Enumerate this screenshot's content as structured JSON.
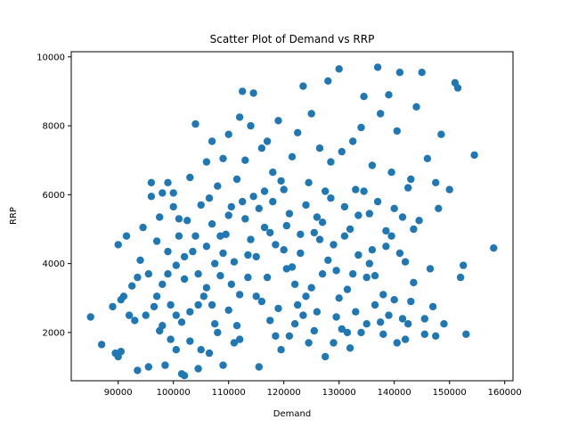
{
  "chart_data": {
    "type": "scatter",
    "title": "Scatter Plot of Demand vs RRP",
    "xlabel": "Demand",
    "ylabel": "RRP",
    "xlim": [
      81500,
      161500
    ],
    "ylim": [
      600,
      10150
    ],
    "xticks": [
      90000,
      100000,
      110000,
      120000,
      130000,
      140000,
      150000,
      160000
    ],
    "xtick_labels": [
      "90000",
      "100000",
      "110000",
      "120000",
      "130000",
      "140000",
      "150000",
      "160000"
    ],
    "yticks": [
      2000,
      4000,
      6000,
      8000,
      10000
    ],
    "ytick_labels": [
      "2000",
      "4000",
      "6000",
      "8000",
      "10000"
    ],
    "grid": false,
    "marker_color": "#1f77b4",
    "points": [
      [
        85000,
        2450
      ],
      [
        87000,
        1650
      ],
      [
        89000,
        2750
      ],
      [
        89500,
        1400
      ],
      [
        90000,
        1300
      ],
      [
        90500,
        1450
      ],
      [
        90000,
        4550
      ],
      [
        90500,
        2950
      ],
      [
        91000,
        3050
      ],
      [
        91500,
        4800
      ],
      [
        92000,
        2500
      ],
      [
        92500,
        3350
      ],
      [
        93000,
        2350
      ],
      [
        93500,
        3600
      ],
      [
        93500,
        900
      ],
      [
        94000,
        4100
      ],
      [
        94500,
        5050
      ],
      [
        95000,
        2500
      ],
      [
        95500,
        1000
      ],
      [
        95500,
        3700
      ],
      [
        96000,
        5950
      ],
      [
        96000,
        6350
      ],
      [
        96500,
        2750
      ],
      [
        97000,
        3050
      ],
      [
        97000,
        4650
      ],
      [
        97500,
        5350
      ],
      [
        97500,
        2050
      ],
      [
        98000,
        6050
      ],
      [
        98000,
        3400
      ],
      [
        98500,
        1050
      ],
      [
        99000,
        6350
      ],
      [
        99000,
        4350
      ],
      [
        99500,
        1800
      ],
      [
        99500,
        2800
      ],
      [
        100000,
        6050
      ],
      [
        100000,
        5650
      ],
      [
        100500,
        3950
      ],
      [
        100500,
        1500
      ],
      [
        101000,
        4800
      ],
      [
        101500,
        2300
      ],
      [
        101500,
        800
      ],
      [
        102000,
        750
      ],
      [
        102000,
        3550
      ],
      [
        102500,
        5250
      ],
      [
        103000,
        1750
      ],
      [
        103000,
        6500
      ],
      [
        103500,
        4350
      ],
      [
        104000,
        8050
      ],
      [
        104500,
        2800
      ],
      [
        104500,
        950
      ],
      [
        105000,
        5700
      ],
      [
        105500,
        3050
      ],
      [
        106000,
        6950
      ],
      [
        106000,
        4500
      ],
      [
        106500,
        1400
      ],
      [
        107000,
        7550
      ],
      [
        107000,
        5150
      ],
      [
        107500,
        2250
      ],
      [
        108000,
        6250
      ],
      [
        108500,
        3650
      ],
      [
        109000,
        7050
      ],
      [
        109000,
        1050
      ],
      [
        109500,
        4850
      ],
      [
        110000,
        7750
      ],
      [
        110000,
        2650
      ],
      [
        110500,
        5650
      ],
      [
        111000,
        4050
      ],
      [
        111500,
        6450
      ],
      [
        112000,
        8250
      ],
      [
        112000,
        1800
      ],
      [
        112500,
        9000
      ],
      [
        113000,
        7000
      ],
      [
        113500,
        4250
      ],
      [
        114000,
        8000
      ],
      [
        114500,
        8950
      ],
      [
        114500,
        5950
      ],
      [
        115000,
        3050
      ],
      [
        115500,
        1000
      ],
      [
        116000,
        7350
      ],
      [
        116500,
        5050
      ],
      [
        117000,
        7550
      ],
      [
        117500,
        2350
      ],
      [
        118000,
        6650
      ],
      [
        118500,
        4550
      ],
      [
        119000,
        8150
      ],
      [
        119500,
        1500
      ],
      [
        120000,
        6150
      ],
      [
        120500,
        3850
      ],
      [
        121000,
        5450
      ],
      [
        121500,
        7100
      ],
      [
        122000,
        2250
      ],
      [
        122500,
        7800
      ],
      [
        123000,
        4850
      ],
      [
        123500,
        9150
      ],
      [
        124000,
        3050
      ],
      [
        124500,
        6350
      ],
      [
        125000,
        8350
      ],
      [
        125500,
        2050
      ],
      [
        126000,
        5350
      ],
      [
        126500,
        7350
      ],
      [
        127000,
        3700
      ],
      [
        127500,
        1300
      ],
      [
        128000,
        9300
      ],
      [
        128500,
        6950
      ],
      [
        129000,
        4550
      ],
      [
        129500,
        2450
      ],
      [
        130000,
        9650
      ],
      [
        130500,
        7250
      ],
      [
        131000,
        5650
      ],
      [
        131500,
        3250
      ],
      [
        132000,
        1550
      ],
      [
        132500,
        7550
      ],
      [
        133000,
        6150
      ],
      [
        133500,
        4250
      ],
      [
        134000,
        7950
      ],
      [
        134500,
        8850
      ],
      [
        135000,
        2250
      ],
      [
        135500,
        5450
      ],
      [
        136000,
        6850
      ],
      [
        136500,
        3650
      ],
      [
        137000,
        9700
      ],
      [
        137500,
        8350
      ],
      [
        138000,
        1950
      ],
      [
        138500,
        4950
      ],
      [
        139000,
        8900
      ],
      [
        139500,
        6650
      ],
      [
        140000,
        2950
      ],
      [
        140500,
        7850
      ],
      [
        141000,
        9550
      ],
      [
        141500,
        5350
      ],
      [
        142000,
        4050
      ],
      [
        142500,
        2250
      ],
      [
        143000,
        6450
      ],
      [
        143500,
        3450
      ],
      [
        144000,
        8550
      ],
      [
        144500,
        5250
      ],
      [
        145000,
        9550
      ],
      [
        145500,
        1950
      ],
      [
        146000,
        7050
      ],
      [
        146500,
        3850
      ],
      [
        147000,
        2750
      ],
      [
        147500,
        6350
      ],
      [
        148000,
        5600
      ],
      [
        148500,
        7750
      ],
      [
        149000,
        2250
      ],
      [
        150000,
        6150
      ],
      [
        151000,
        9250
      ],
      [
        151500,
        9100
      ],
      [
        152000,
        3600
      ],
      [
        152500,
        3950
      ],
      [
        153000,
        1950
      ],
      [
        154500,
        7150
      ],
      [
        158000,
        4450
      ],
      [
        104000,
        4800
      ],
      [
        106000,
        3300
      ],
      [
        108000,
        2000
      ],
      [
        110000,
        5400
      ],
      [
        112000,
        3100
      ],
      [
        114000,
        4700
      ],
      [
        116000,
        2900
      ],
      [
        118000,
        5800
      ],
      [
        120000,
        4400
      ],
      [
        122000,
        3400
      ],
      [
        124000,
        5700
      ],
      [
        126000,
        2600
      ],
      [
        128000,
        4100
      ],
      [
        130000,
        3000
      ],
      [
        132000,
        5000
      ],
      [
        134000,
        2000
      ],
      [
        136000,
        4400
      ],
      [
        138000,
        3100
      ],
      [
        140000,
        5600
      ],
      [
        142000,
        1800
      ],
      [
        105000,
        1500
      ],
      [
        107000,
        2800
      ],
      [
        109000,
        4300
      ],
      [
        111000,
        1700
      ],
      [
        113000,
        5300
      ],
      [
        115000,
        4200
      ],
      [
        117000,
        3600
      ],
      [
        119000,
        2700
      ],
      [
        121000,
        1900
      ],
      [
        123000,
        4300
      ],
      [
        125000,
        3300
      ],
      [
        127000,
        5200
      ],
      [
        129000,
        1700
      ],
      [
        131000,
        4800
      ],
      [
        133000,
        2600
      ],
      [
        135000,
        3600
      ],
      [
        137000,
        5800
      ],
      [
        139000,
        2500
      ],
      [
        141000,
        4300
      ],
      [
        143000,
        2900
      ],
      [
        102000,
        4200
      ],
      [
        103000,
        2600
      ],
      [
        106500,
        5900
      ],
      [
        108500,
        4800
      ],
      [
        111500,
        2200
      ],
      [
        113500,
        3600
      ],
      [
        116500,
        6100
      ],
      [
        118500,
        1900
      ],
      [
        120500,
        5100
      ],
      [
        122500,
        2800
      ],
      [
        124500,
        1700
      ],
      [
        126500,
        4700
      ],
      [
        128500,
        5900
      ],
      [
        130500,
        2100
      ],
      [
        132500,
        3700
      ],
      [
        134500,
        6100
      ],
      [
        136500,
        2800
      ],
      [
        138500,
        4500
      ],
      [
        140500,
        1700
      ],
      [
        142500,
        6200
      ],
      [
        98000,
        2200
      ],
      [
        99000,
        3700
      ],
      [
        100500,
        2500
      ],
      [
        101000,
        5300
      ],
      [
        104500,
        3700
      ],
      [
        107500,
        4000
      ],
      [
        110500,
        3400
      ],
      [
        112500,
        5800
      ],
      [
        115500,
        5600
      ],
      [
        117500,
        4900
      ],
      [
        119500,
        6400
      ],
      [
        121500,
        3900
      ],
      [
        123500,
        2500
      ],
      [
        125500,
        4900
      ],
      [
        127500,
        6100
      ],
      [
        129500,
        3800
      ],
      [
        131500,
        2000
      ],
      [
        133500,
        5400
      ],
      [
        135500,
        4000
      ],
      [
        137500,
        2300
      ],
      [
        139500,
        4800
      ],
      [
        141500,
        2400
      ],
      [
        143500,
        5000
      ],
      [
        145500,
        2400
      ],
      [
        147500,
        1900
      ]
    ]
  }
}
